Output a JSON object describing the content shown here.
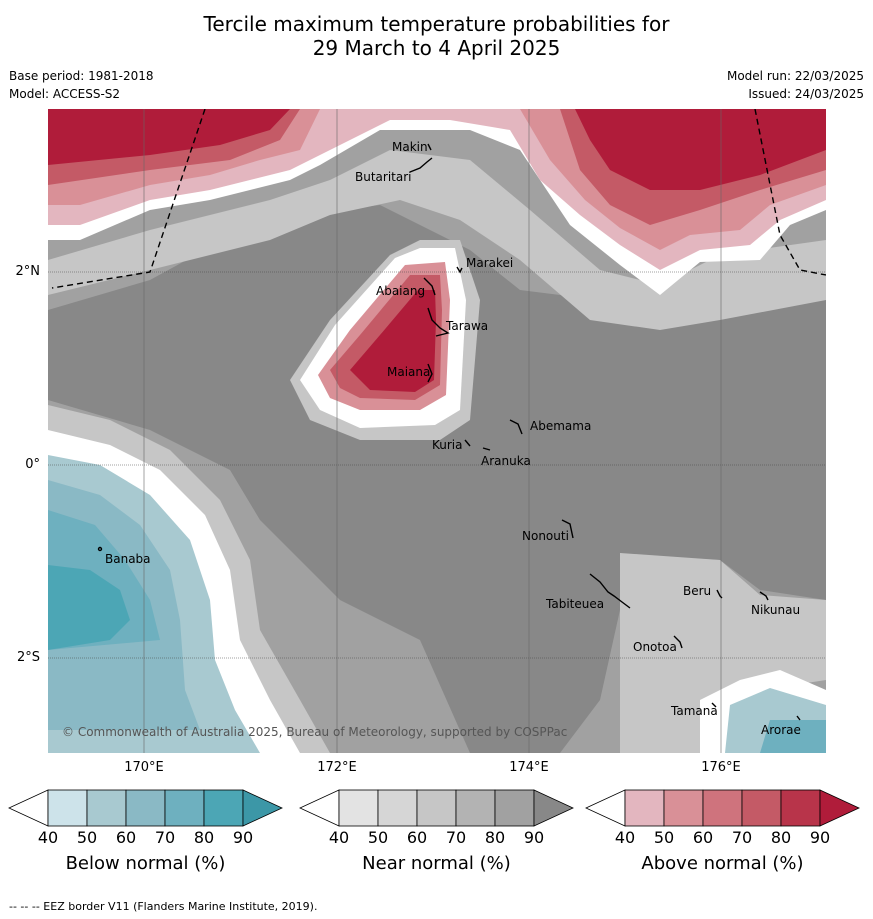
{
  "title_line1": "Tercile maximum temperature probabilities for",
  "title_line2": "29 March to 4 April 2025",
  "base_period": "Base period: 1981-2018",
  "model": "Model: ACCESS-S2",
  "model_run": "Model run: 22/03/2025",
  "issued": "Issued: 24/03/2025",
  "copyright": "© Commonwealth of Australia 2025, Bureau of Meteorology, supported by COSPPac",
  "footnote": "-- -- -- EEZ border V11 (Flanders Marine Institute, 2019).",
  "longitude_labels": [
    "170°E",
    "172°E",
    "174°E",
    "176°E"
  ],
  "latitude_labels": [
    "2°N",
    "0°",
    "2°S"
  ],
  "places": [
    "Makin",
    "Butaritari",
    "Marakei",
    "Abaiang",
    "Tarawa",
    "Maiana",
    "Abemama",
    "Kuria",
    "Aranuka",
    "Banaba",
    "Nonouti",
    "Tabiteuea",
    "Beru",
    "Nikunau",
    "Onotoa",
    "Tamana",
    "Arorae"
  ],
  "colorbars": [
    {
      "label": "Below normal (%)",
      "ticks": [
        "40",
        "50",
        "60",
        "70",
        "80",
        "90"
      ],
      "colors": [
        "#ffffff",
        "#cde3ea",
        "#a8c9d0",
        "#8ab9c5",
        "#6eb0bf",
        "#4ca6b5",
        "#3c97a7"
      ]
    },
    {
      "label": "Near normal (%)",
      "ticks": [
        "40",
        "50",
        "60",
        "70",
        "80",
        "90"
      ],
      "colors": [
        "#ffffff",
        "#e3e3e3",
        "#d6d6d6",
        "#c6c6c6",
        "#b3b3b3",
        "#a1a1a1",
        "#888888"
      ]
    },
    {
      "label": "Above normal (%)",
      "ticks": [
        "40",
        "50",
        "60",
        "70",
        "80",
        "90"
      ],
      "colors": [
        "#ffffff",
        "#e3b6bf",
        "#d99097",
        "#cf737d",
        "#c45a66",
        "#b8344a",
        "#b01c3a"
      ]
    }
  ]
}
